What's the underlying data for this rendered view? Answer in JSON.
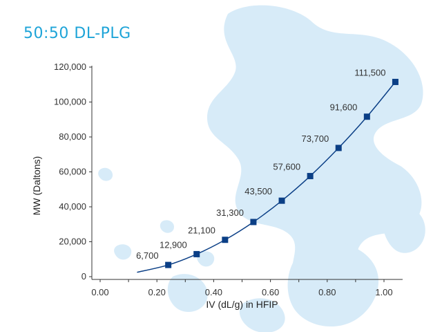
{
  "page": {
    "title": "50:50 DL-PLG"
  },
  "colors": {
    "title": "#1ea4d8",
    "series": "#0b3f86",
    "background_blobs": "#d7ebf8"
  },
  "chart_data": {
    "type": "line",
    "title": "50:50 DL-PLG",
    "xlabel": "IV  (dL/g) in HFIP",
    "ylabel": "MW (Daltons)",
    "xlim": [
      0.0,
      1.06
    ],
    "ylim": [
      0,
      120000
    ],
    "x_ticks": [
      0.0,
      0.2,
      0.4,
      0.6,
      0.8,
      1.0
    ],
    "x_tick_labels": [
      "0.00",
      "0.20",
      "0.40",
      "0.60",
      "0.80",
      "1.00"
    ],
    "y_ticks": [
      0,
      20000,
      40000,
      60000,
      80000,
      100000,
      120000
    ],
    "y_tick_labels": [
      "0",
      "20,000",
      "40,000",
      "60,000",
      "80,000",
      "100,000",
      "120,000"
    ],
    "series": [
      {
        "name": "50:50 DL-PLG",
        "marker": "square",
        "curve_start": [
          0.13,
          2500
        ],
        "x": [
          0.24,
          0.34,
          0.44,
          0.54,
          0.64,
          0.74,
          0.84,
          0.94,
          1.04
        ],
        "y": [
          6700,
          12900,
          21100,
          31300,
          43500,
          57600,
          73700,
          91600,
          111500
        ],
        "labels": [
          "6,700",
          "12,900",
          "21,100",
          "31,300",
          "43,500",
          "57,600",
          "73,700",
          "91,600",
          "111,500"
        ]
      }
    ]
  }
}
